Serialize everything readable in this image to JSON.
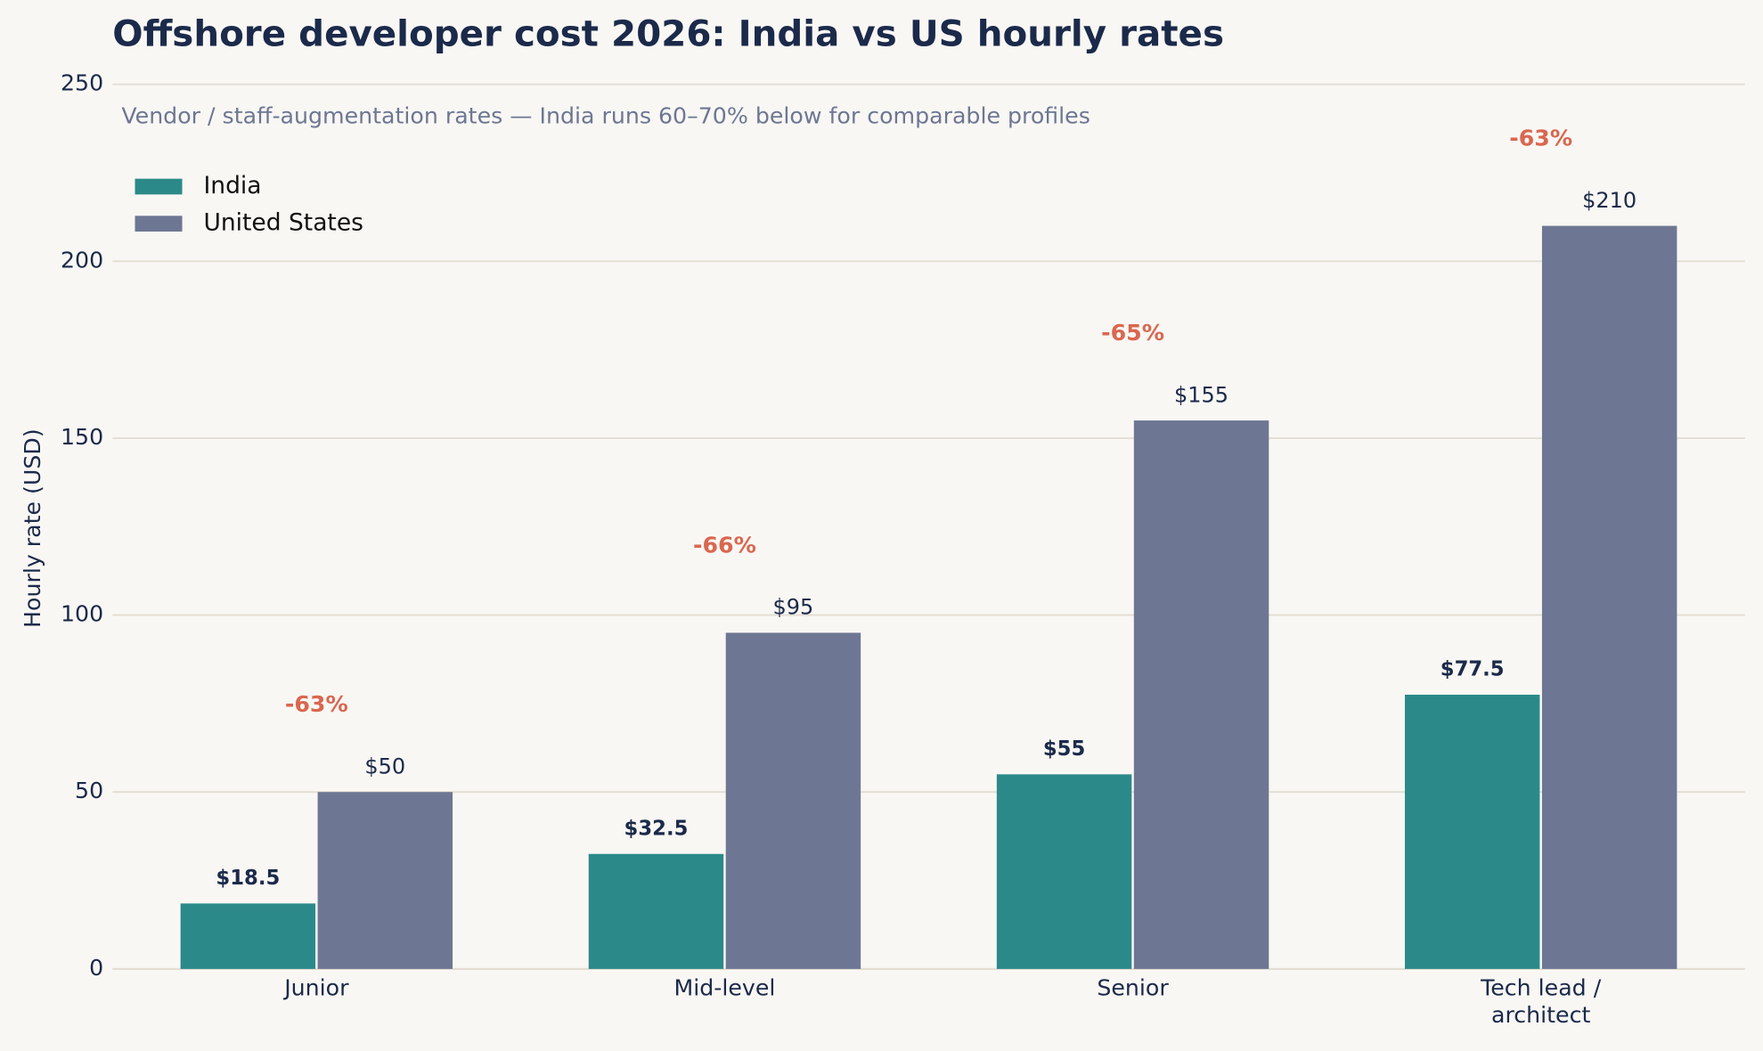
{
  "chart_data": {
    "type": "bar",
    "title": "Offshore developer cost 2026: India vs US hourly rates",
    "subtitle": "Vendor / staff-augmentation rates — India runs 60–70% below for comparable profiles",
    "y_label": "Hourly rate (USD)",
    "categories": [
      "Junior",
      "Mid-level",
      "Senior",
      "Tech lead /\narchitect"
    ],
    "series": [
      {
        "name": "India",
        "color": "#2b8a89",
        "values": [
          18.5,
          32.5,
          55,
          77.5
        ],
        "value_labels": [
          "$18.5",
          "$32.5",
          "$55",
          "$77.5"
        ]
      },
      {
        "name": "United States",
        "color": "#6d7793",
        "values": [
          50,
          95,
          155,
          210
        ],
        "value_labels": [
          "$50",
          "$95",
          "$155",
          "$210"
        ]
      }
    ],
    "annotations": [
      "-63%",
      "-66%",
      "-65%",
      "-63%"
    ],
    "annotation_color": "#d9674f",
    "ylim": [
      0,
      250
    ],
    "yticks": [
      0,
      50,
      100,
      150,
      200,
      250
    ],
    "grid": true,
    "legend": "upper left"
  }
}
